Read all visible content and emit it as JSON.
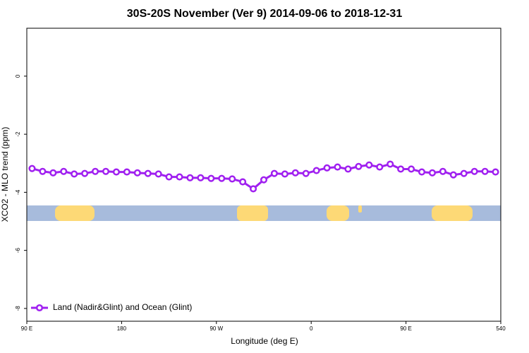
{
  "chart_data": {
    "type": "line",
    "title": "30S-20S November (Ver 9)   2014-09-06 to 2018-12-31",
    "xlabel": "Longitude (deg E)",
    "ylabel": "XCO2 - MLO trend (ppm)",
    "x": [
      95,
      105,
      115,
      125,
      135,
      145,
      155,
      165,
      175,
      185,
      195,
      205,
      215,
      225,
      235,
      245,
      255,
      265,
      275,
      285,
      295,
      305,
      315,
      325,
      335,
      345,
      355,
      365,
      375,
      385,
      395,
      405,
      415,
      425,
      435,
      445,
      455,
      465,
      475,
      485,
      495,
      505,
      515,
      525,
      535
    ],
    "series": [
      {
        "name": "Land (Nadir&Glint) and Ocean (Glint)",
        "color": "#a020f0",
        "values": [
          -3.18,
          -3.28,
          -3.33,
          -3.28,
          -3.37,
          -3.35,
          -3.28,
          -3.28,
          -3.3,
          -3.3,
          -3.33,
          -3.35,
          -3.37,
          -3.47,
          -3.47,
          -3.5,
          -3.5,
          -3.52,
          -3.52,
          -3.54,
          -3.64,
          -3.88,
          -3.57,
          -3.35,
          -3.37,
          -3.33,
          -3.35,
          -3.25,
          -3.16,
          -3.13,
          -3.2,
          -3.11,
          -3.06,
          -3.13,
          -3.03,
          -3.2,
          -3.2,
          -3.3,
          -3.33,
          -3.28,
          -3.4,
          -3.35,
          -3.28,
          -3.28,
          -3.3
        ]
      }
    ],
    "xlim": [
      90,
      540
    ],
    "xticks": [
      {
        "value": 90,
        "label": "90 E"
      },
      180,
      {
        "value": 270,
        "label": "90 W"
      },
      {
        "value": 360,
        "label": "0"
      },
      {
        "value": 450,
        "label": "90 E"
      },
      540
    ],
    "ylim": [
      -8.44,
      1.65
    ],
    "yticks": [
      0,
      -2,
      -4,
      -6,
      -8
    ],
    "legend": "lower left"
  }
}
